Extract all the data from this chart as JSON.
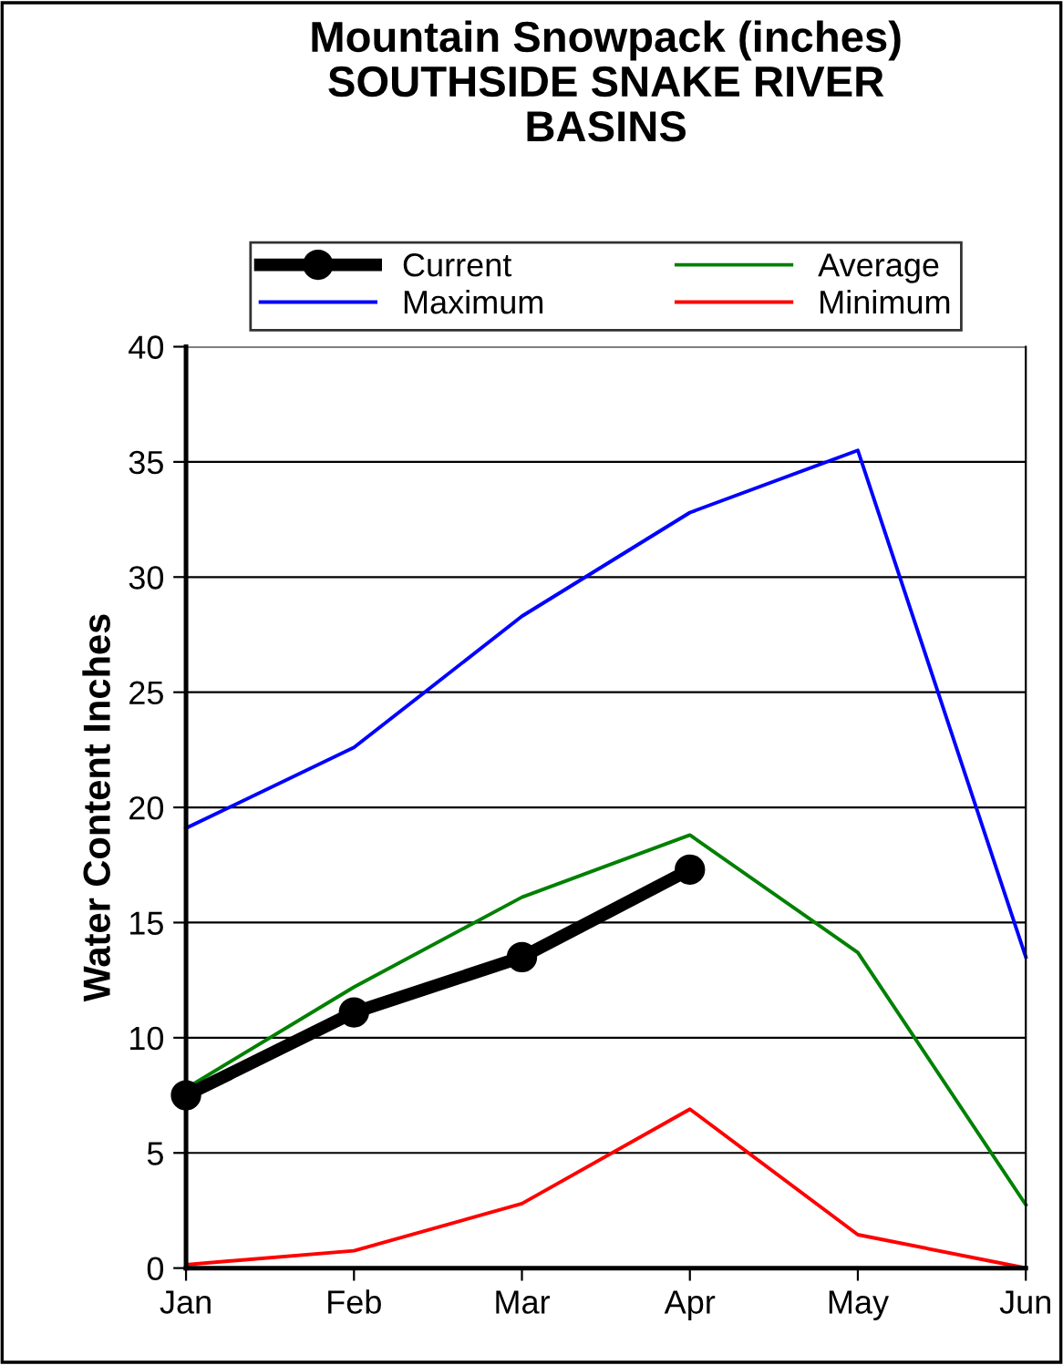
{
  "chart_data": {
    "type": "line",
    "title": "Mountain Snowpack (inches)\nSOUTHSIDE SNAKE RIVER\nBASINS",
    "ylabel": "Water Content Inches",
    "categories": [
      "Jan",
      "Feb",
      "Mar",
      "Apr",
      "May",
      "Jun"
    ],
    "series": [
      {
        "name": "Current",
        "color": "#000000",
        "values": [
          7.5,
          11.1,
          13.5,
          17.3,
          null,
          null
        ],
        "marker": "circle"
      },
      {
        "name": "Average",
        "color": "#008000",
        "values": [
          7.8,
          12.2,
          16.1,
          18.8,
          13.7,
          2.75
        ]
      },
      {
        "name": "Maximum",
        "color": "#0000ff",
        "values": [
          19.1,
          22.6,
          28.3,
          32.8,
          35.5,
          13.5
        ]
      },
      {
        "name": "Minimum",
        "color": "#ff0000",
        "values": [
          0.15,
          0.75,
          2.8,
          6.9,
          1.45,
          0
        ]
      }
    ],
    "ylim": [
      0,
      40
    ],
    "yticks": [
      0,
      5,
      10,
      15,
      20,
      25,
      30,
      35,
      40
    ],
    "grid": "y",
    "legend": "top"
  }
}
